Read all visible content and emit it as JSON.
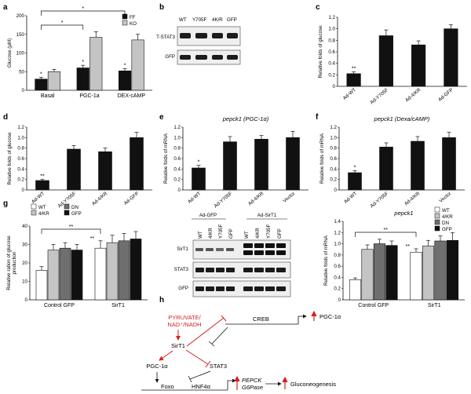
{
  "panel_labels": [
    "a",
    "b",
    "c",
    "d",
    "e",
    "f",
    "g",
    "h"
  ],
  "colors": {
    "black": "#111111",
    "dark_gray": "#6f6f6f",
    "light_gray": "#c4c4c4",
    "white": "#ffffff",
    "red": "#d42020"
  },
  "chart_data": [
    {
      "id": "a",
      "type": "bar",
      "categories": [
        "Basal",
        "PGC-1a",
        "DEX-cAMP"
      ],
      "series": [
        {
          "name": "FF",
          "color": "#111111",
          "values": [
            30,
            60,
            52
          ],
          "errors": [
            5,
            7,
            6
          ],
          "stars": [
            "*",
            "*",
            "*"
          ]
        },
        {
          "name": "KO",
          "color": "#c4c4c4",
          "values": [
            50,
            142,
            135
          ],
          "errors": [
            6,
            15,
            15
          ],
          "stars": [
            "",
            "",
            ""
          ]
        }
      ],
      "ylabel": "Glucose (μM)",
      "ylim": [
        0,
        200
      ],
      "yticks": [
        0,
        50,
        100,
        150,
        200
      ],
      "brackets": [
        {
          "from": 0,
          "to": 1,
          "label": "*"
        },
        {
          "from": 0,
          "to": 2,
          "label": "*"
        }
      ],
      "legend_position": "top-right"
    },
    {
      "id": "c",
      "type": "bar",
      "categories": [
        "Ad-WT",
        "Ad-Y705F",
        "Ad-4/KR",
        "Ad-GFP"
      ],
      "series": [
        {
          "name": "",
          "color": "#111111",
          "values": [
            0.22,
            0.88,
            0.72,
            1.0
          ],
          "errors": [
            0.03,
            0.1,
            0.07,
            0.07
          ],
          "stars": [
            "**",
            "",
            "",
            ""
          ]
        }
      ],
      "ylabel": "Relative folds of glucose",
      "ylim": [
        0,
        1.2
      ],
      "yticks": [
        0,
        0.2,
        0.4,
        0.6,
        0.8,
        1.0,
        1.2
      ]
    },
    {
      "id": "d",
      "type": "bar",
      "categories": [
        "Ad-WT",
        "Ad-Y705F",
        "Ad-4/KR",
        "Ad-GFP"
      ],
      "series": [
        {
          "name": "",
          "color": "#111111",
          "values": [
            0.18,
            0.78,
            0.73,
            1.0
          ],
          "errors": [
            0.02,
            0.07,
            0.07,
            0.1
          ],
          "stars": [
            "**",
            "",
            "",
            ""
          ]
        }
      ],
      "ylabel": "Relative folds of glucose",
      "ylim": [
        0,
        1.2
      ],
      "yticks": [
        0,
        0.2,
        0.4,
        0.6,
        0.8,
        1.0,
        1.2
      ]
    },
    {
      "id": "e",
      "type": "bar",
      "title": "pepck1 (PGC-1α)",
      "categories": [
        "Ad-WT",
        "Ad-Y705F",
        "Ad-4/KR",
        "Vector"
      ],
      "series": [
        {
          "name": "",
          "color": "#111111",
          "values": [
            0.42,
            0.92,
            0.97,
            1.0
          ],
          "errors": [
            0.05,
            0.1,
            0.07,
            0.12
          ],
          "stars": [
            "*",
            "",
            "",
            ""
          ]
        }
      ],
      "ylabel": "Relative folds of mRNA",
      "ylim": [
        0,
        1.2
      ],
      "yticks": [
        0,
        0.2,
        0.4,
        0.6,
        0.8,
        1.0,
        1.2
      ]
    },
    {
      "id": "f",
      "type": "bar",
      "title": "pepck1 (Dexa/cAMP)",
      "categories": [
        "Ad-WT",
        "Ad-Y705F",
        "Ad-4/KR",
        "Vector"
      ],
      "series": [
        {
          "name": "",
          "color": "#111111",
          "values": [
            0.33,
            0.82,
            0.93,
            1.0
          ],
          "errors": [
            0.04,
            0.08,
            0.09,
            0.1
          ],
          "stars": [
            "*",
            "",
            "",
            ""
          ]
        }
      ],
      "ylabel": "Relative folds of mRNA",
      "ylim": [
        0,
        1.2
      ],
      "yticks": [
        0,
        0.2,
        0.4,
        0.6,
        0.8,
        1.0,
        1.2
      ]
    },
    {
      "id": "g",
      "type": "bar",
      "categories": [
        "Control GFP",
        "SirT1"
      ],
      "series": [
        {
          "name": "WT",
          "color": "#ffffff",
          "values": [
            16,
            28
          ],
          "errors": [
            2,
            4
          ]
        },
        {
          "name": "4/KR",
          "color": "#c4c4c4",
          "values": [
            27,
            31
          ],
          "errors": [
            3,
            4
          ]
        },
        {
          "name": "DN",
          "color": "#6f6f6f",
          "values": [
            28,
            32
          ],
          "errors": [
            3,
            4
          ]
        },
        {
          "name": "GFP",
          "color": "#111111",
          "values": [
            27,
            33
          ],
          "errors": [
            3,
            4
          ]
        }
      ],
      "group_stars": [
        [],
        [
          "**"
        ]
      ],
      "ylabel": "Relative ration of glucose production",
      "ylim": [
        0,
        40
      ],
      "yticks": [
        0,
        10,
        20,
        30,
        40
      ],
      "brackets": [
        {
          "from": [
            0,
            0
          ],
          "to": [
            1,
            0
          ],
          "label": "**"
        }
      ],
      "legend_position": "top-left"
    },
    {
      "id": "g2",
      "type": "bar",
      "title": "pepck1",
      "categories": [
        "Control GFP",
        "SirT1"
      ],
      "series": [
        {
          "name": "WT",
          "color": "#ffffff",
          "values": [
            0.36,
            0.85
          ],
          "errors": [
            0.03,
            0.06
          ]
        },
        {
          "name": "4/KR",
          "color": "#c4c4c4",
          "values": [
            0.9,
            0.96
          ],
          "errors": [
            0.08,
            0.1
          ]
        },
        {
          "name": "DN",
          "color": "#6f6f6f",
          "values": [
            1.0,
            1.05
          ],
          "errors": [
            0.08,
            0.09
          ]
        },
        {
          "name": "GFP",
          "color": "#111111",
          "values": [
            0.97,
            1.06
          ],
          "errors": [
            0.08,
            0.14
          ]
        }
      ],
      "group_stars": [
        [],
        [
          "**"
        ]
      ],
      "ylabel": "Relative folds of mRNA",
      "ylim": [
        0,
        1.4
      ],
      "yticks": [
        0,
        0.2,
        0.4,
        0.6,
        0.8,
        1.0,
        1.2,
        1.4
      ],
      "brackets": [
        {
          "from": [
            0,
            0
          ],
          "to": [
            1,
            0
          ],
          "label": "**"
        }
      ],
      "legend_position": "top-right"
    }
  ],
  "blot_b": {
    "lanes": [
      "WT",
      "Y705F",
      "4K/R",
      "GFP"
    ],
    "rows": [
      "T-STAT3",
      "GFP"
    ]
  },
  "blot_g": {
    "groups": [
      "Ad-GFP",
      "Ad-SirT1"
    ],
    "lanes": [
      "WT",
      "4/KR",
      "Y705F",
      "GFP",
      "WT",
      "4/KR",
      "Y705F",
      "GFP"
    ],
    "rows": [
      "SirT1",
      "STAT3",
      "GFP"
    ]
  },
  "diagram_h": {
    "pyruvate": "PYRUVATE/",
    "nad": "NAD⁺/NADH",
    "sirt1": "SirT1",
    "pgc": "PGC-1α",
    "stat3": "STAT3",
    "creb": "CREB",
    "pgc_target": "PGC-1α",
    "foxo": "Foxo",
    "hnf": "HNF4α",
    "pepck": "PEPCK",
    "g6pase": "G6Pase",
    "gluco": "Gluconeogenesis"
  }
}
